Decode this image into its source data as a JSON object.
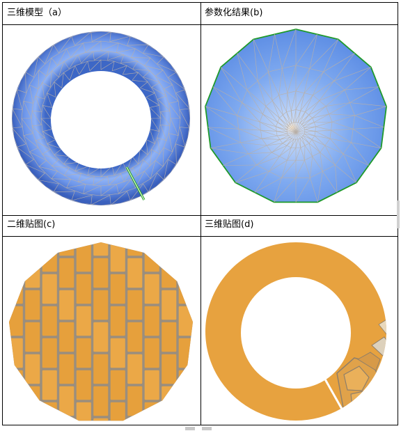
{
  "panels": [
    {
      "id": "a",
      "caption": "三维模型（a）"
    },
    {
      "id": "b",
      "caption": "参数化结果(b)"
    },
    {
      "id": "c",
      "caption": "二维贴图(c)"
    },
    {
      "id": "d",
      "caption": "三维贴图(d)"
    }
  ],
  "colors": {
    "torus_blue": "#5f8fe6",
    "mesh_line": "#b9b0a8",
    "boundary_green": "#1f9a2a",
    "brick_orange": "#e7a23f",
    "mortar": "#9a8e7e"
  }
}
